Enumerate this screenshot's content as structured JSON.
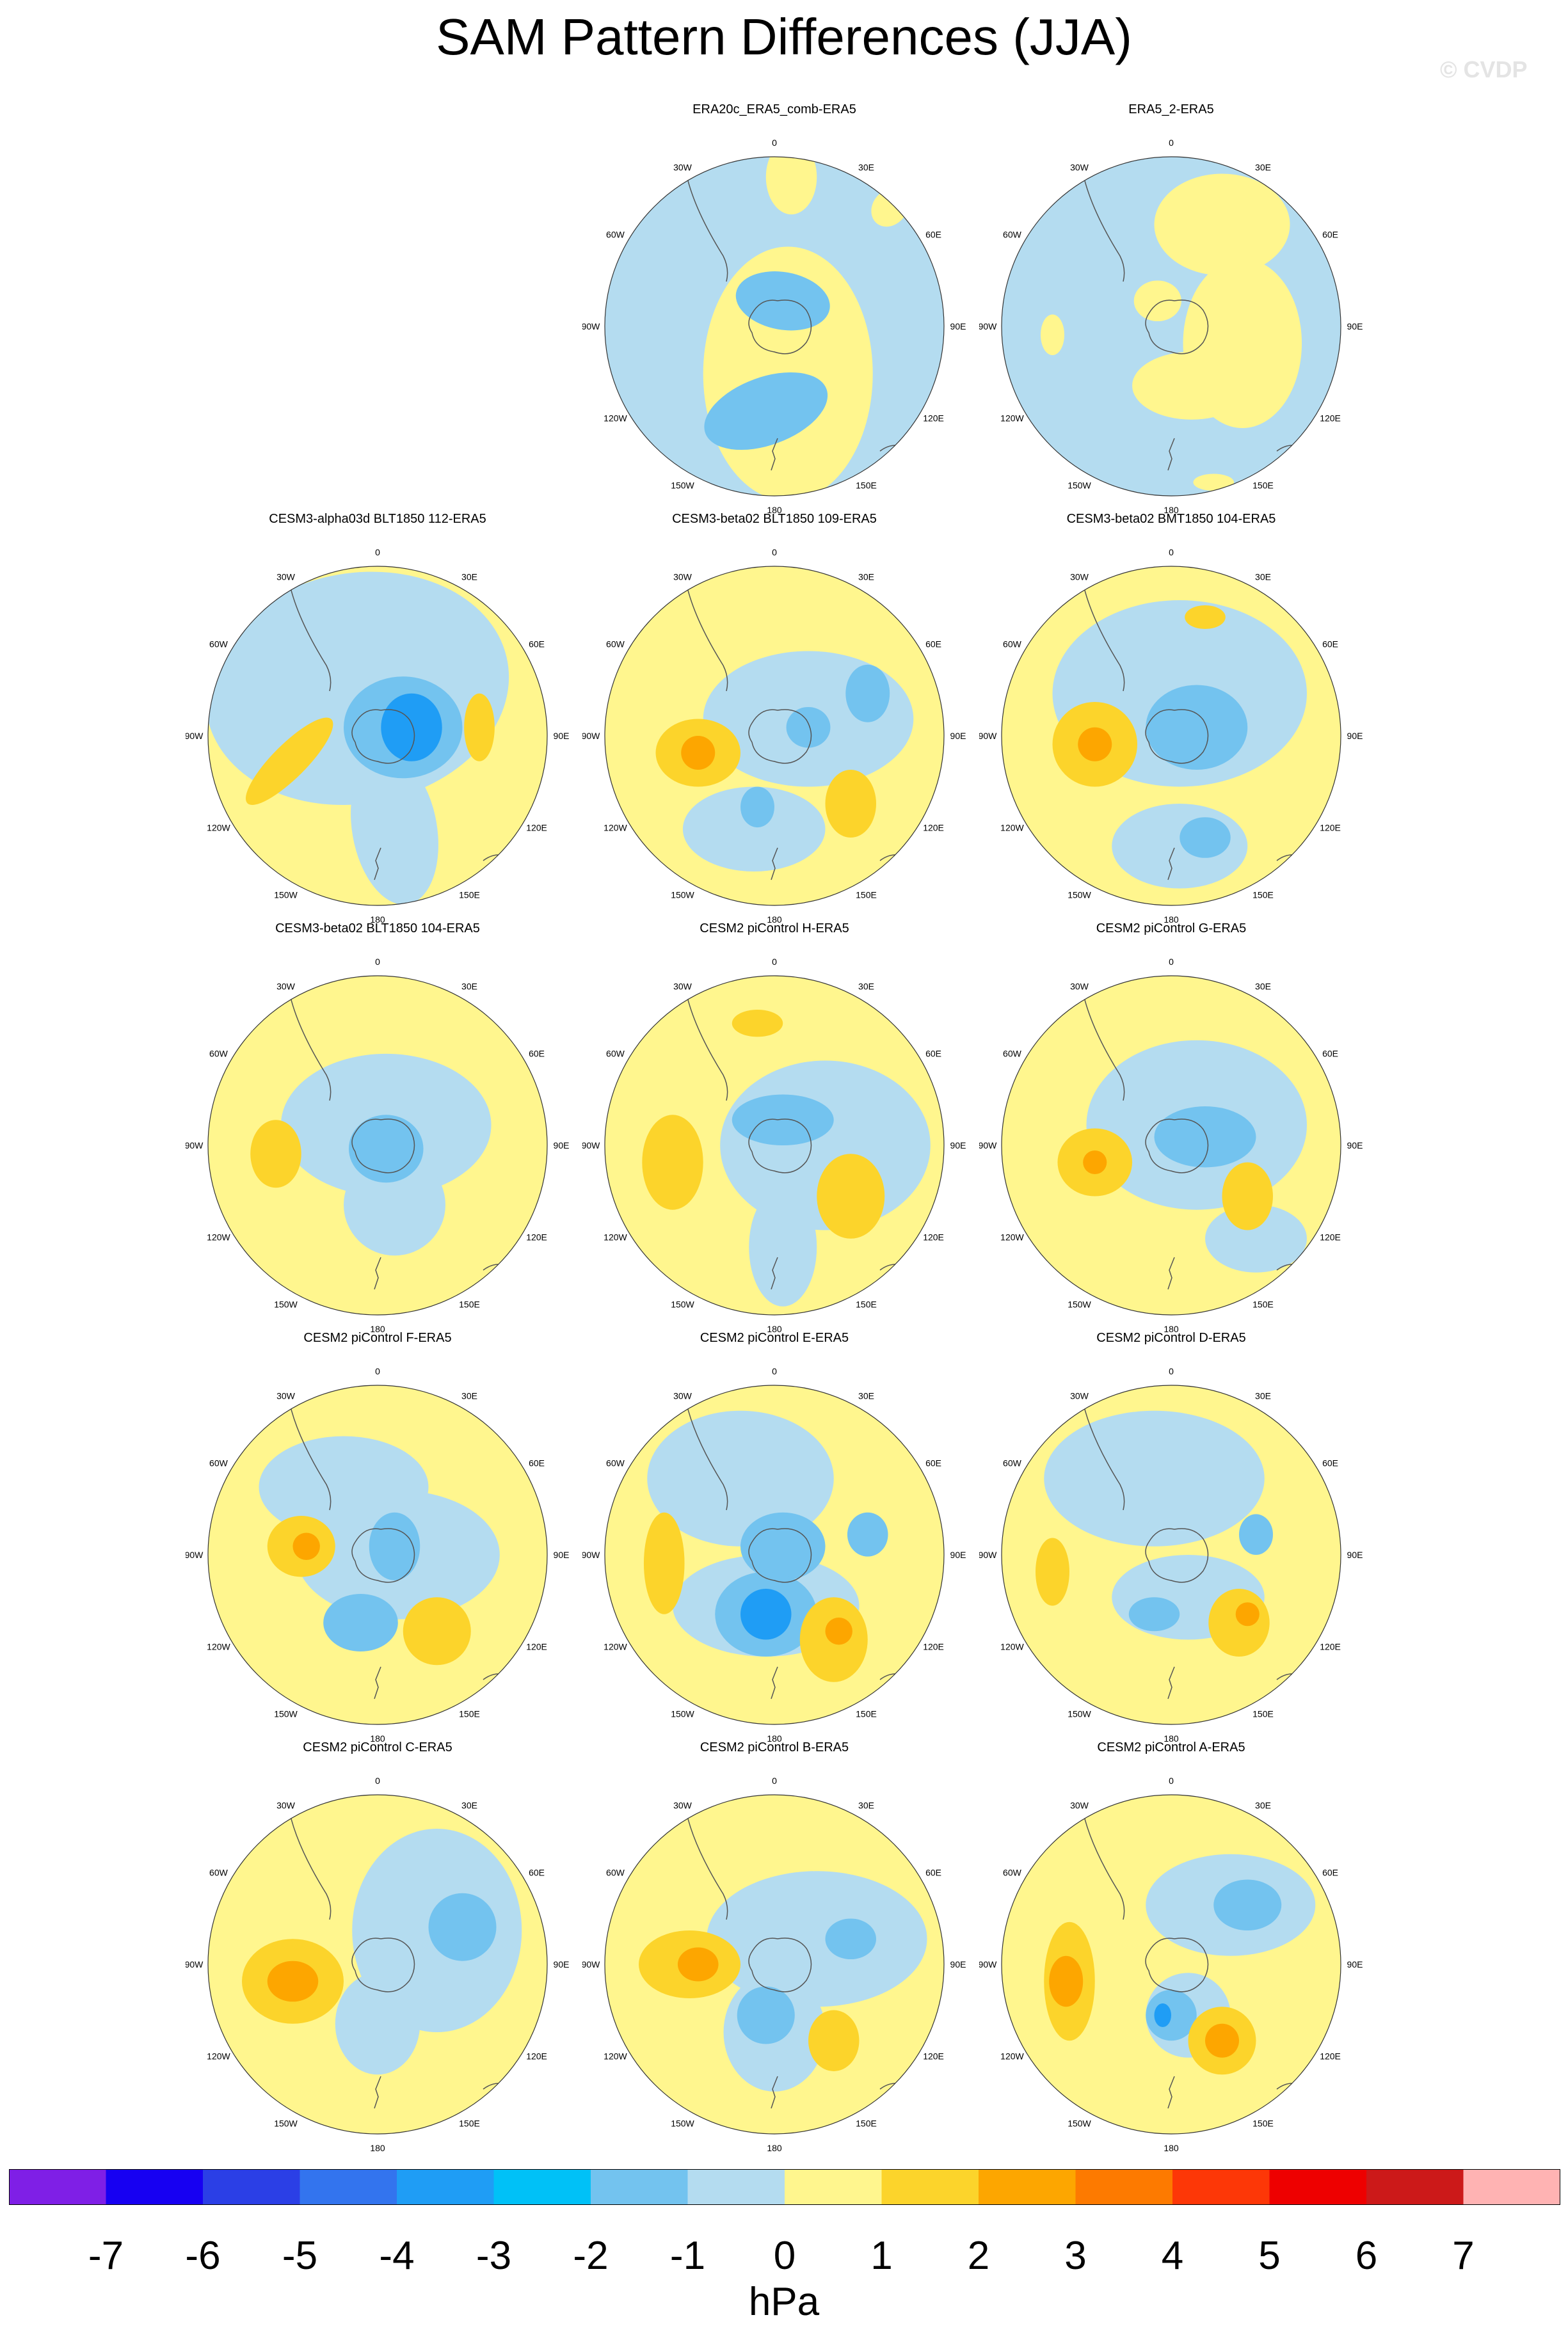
{
  "title": "SAM Pattern Differences (JJA)",
  "watermark": "© CVDP",
  "colors": {
    "neg1": "#b4dcf0",
    "neg2": "#73c3ef",
    "neg3": "#1f9df5",
    "pos1": "#fff68e",
    "pos2": "#fcd42b",
    "pos3": "#fda600",
    "land": "#555555",
    "rim": "#333333"
  },
  "panels": [
    {
      "title": "ERA20c_ERA5_comb-ERA5",
      "bg": "neg1",
      "blobs": [
        [
          "pos1",
          0.08,
          -0.28,
          0.5,
          0.75,
          0
        ],
        [
          "pos1",
          0.1,
          0.88,
          0.15,
          0.22,
          0
        ],
        [
          "pos1",
          0.68,
          0.7,
          0.1,
          0.12,
          40
        ],
        [
          "neg2",
          -0.05,
          -0.5,
          0.38,
          0.2,
          -20
        ],
        [
          "neg2",
          0.05,
          0.15,
          0.28,
          0.17,
          10
        ]
      ]
    },
    {
      "title": "ERA5_2-ERA5",
      "bg": "neg1",
      "blobs": [
        [
          "pos1",
          0.3,
          0.6,
          0.4,
          0.3,
          0
        ],
        [
          "pos1",
          0.42,
          -0.1,
          0.35,
          0.5,
          0
        ],
        [
          "pos1",
          0.12,
          -0.35,
          0.35,
          0.2,
          0
        ],
        [
          "pos1",
          -0.7,
          -0.05,
          0.07,
          0.12,
          0
        ],
        [
          "pos1",
          -0.08,
          0.15,
          0.14,
          0.12,
          0
        ],
        [
          "pos1",
          0.25,
          -0.92,
          0.12,
          0.05,
          0
        ]
      ]
    },
    {
      "title": "CESM3-alpha03d BLT1850 112-ERA5",
      "bg": "pos1",
      "blobs": [
        [
          "neg1",
          -0.12,
          0.28,
          0.9,
          0.68,
          -10
        ],
        [
          "neg1",
          0.1,
          -0.55,
          0.25,
          0.45,
          -10
        ],
        [
          "neg2",
          0.15,
          0.05,
          0.35,
          0.3,
          0
        ],
        [
          "neg3",
          0.2,
          0.05,
          0.18,
          0.2,
          0
        ],
        [
          "pos2",
          -0.52,
          -0.15,
          0.1,
          0.35,
          45
        ],
        [
          "pos2",
          0.6,
          0.05,
          0.09,
          0.2,
          0
        ]
      ]
    },
    {
      "title": "CESM3-beta02 BLT1850 109-ERA5",
      "bg": "pos1",
      "blobs": [
        [
          "neg1",
          0.2,
          0.1,
          0.62,
          0.4,
          0
        ],
        [
          "neg1",
          -0.12,
          -0.55,
          0.42,
          0.25,
          0
        ],
        [
          "neg2",
          0.55,
          0.25,
          0.13,
          0.17,
          0
        ],
        [
          "neg2",
          0.2,
          0.05,
          0.13,
          0.12,
          0
        ],
        [
          "neg2",
          -0.1,
          -0.42,
          0.1,
          0.12,
          0
        ],
        [
          "pos2",
          -0.45,
          -0.1,
          0.25,
          0.2,
          0
        ],
        [
          "pos3",
          -0.45,
          -0.1,
          0.1,
          0.1,
          0
        ],
        [
          "pos2",
          0.45,
          -0.4,
          0.15,
          0.2,
          0
        ]
      ]
    },
    {
      "title": "CESM3-beta02 BMT1850 104-ERA5",
      "bg": "pos1",
      "blobs": [
        [
          "neg1",
          0.05,
          0.25,
          0.75,
          0.55,
          0
        ],
        [
          "neg1",
          0.05,
          -0.65,
          0.4,
          0.25,
          0
        ],
        [
          "neg2",
          0.15,
          0.05,
          0.3,
          0.25,
          0
        ],
        [
          "neg2",
          0.2,
          -0.6,
          0.15,
          0.12,
          0
        ],
        [
          "pos2",
          -0.45,
          -0.05,
          0.25,
          0.25,
          0
        ],
        [
          "pos3",
          -0.45,
          -0.05,
          0.1,
          0.1,
          0
        ],
        [
          "pos2",
          0.2,
          0.7,
          0.12,
          0.07,
          0
        ]
      ]
    },
    {
      "title": "CESM3-beta02 BLT1850 104-ERA5",
      "bg": "pos1",
      "blobs": [
        [
          "neg1",
          0.05,
          0.12,
          0.62,
          0.42,
          0
        ],
        [
          "neg1",
          0.1,
          -0.35,
          0.3,
          0.3,
          0
        ],
        [
          "neg2",
          0.05,
          -0.02,
          0.22,
          0.2,
          0
        ],
        [
          "pos2",
          -0.6,
          -0.05,
          0.15,
          0.2,
          0
        ]
      ]
    },
    {
      "title": "CESM2 piControl H-ERA5",
      "bg": "pos1",
      "blobs": [
        [
          "neg1",
          0.3,
          0.0,
          0.62,
          0.5,
          0
        ],
        [
          "neg1",
          0.05,
          -0.6,
          0.2,
          0.35,
          0
        ],
        [
          "neg2",
          0.05,
          0.15,
          0.3,
          0.15,
          0
        ],
        [
          "pos2",
          -0.6,
          -0.1,
          0.18,
          0.28,
          0
        ],
        [
          "pos2",
          0.45,
          -0.3,
          0.2,
          0.25,
          0
        ],
        [
          "pos2",
          -0.1,
          0.72,
          0.15,
          0.08,
          0
        ]
      ]
    },
    {
      "title": "CESM2 piControl G-ERA5",
      "bg": "pos1",
      "blobs": [
        [
          "neg1",
          0.15,
          0.12,
          0.65,
          0.5,
          0
        ],
        [
          "neg1",
          0.5,
          -0.55,
          0.3,
          0.2,
          0
        ],
        [
          "neg2",
          0.2,
          0.05,
          0.3,
          0.18,
          0
        ],
        [
          "pos2",
          -0.45,
          -0.1,
          0.22,
          0.2,
          0
        ],
        [
          "pos3",
          -0.45,
          -0.1,
          0.07,
          0.07,
          0
        ],
        [
          "pos2",
          0.45,
          -0.3,
          0.15,
          0.2,
          0
        ]
      ]
    },
    {
      "title": "CESM2 piControl F-ERA5",
      "bg": "pos1",
      "blobs": [
        [
          "neg1",
          -0.2,
          0.4,
          0.5,
          0.3,
          0
        ],
        [
          "neg1",
          0.12,
          0.0,
          0.6,
          0.38,
          0
        ],
        [
          "neg2",
          0.1,
          0.05,
          0.15,
          0.2,
          0
        ],
        [
          "neg2",
          -0.1,
          -0.4,
          0.22,
          0.17,
          0
        ],
        [
          "pos2",
          -0.45,
          0.05,
          0.2,
          0.18,
          0
        ],
        [
          "pos3",
          -0.42,
          0.05,
          0.08,
          0.08,
          0
        ],
        [
          "pos2",
          0.35,
          -0.45,
          0.2,
          0.2,
          0
        ]
      ]
    },
    {
      "title": "CESM2 piControl E-ERA5",
      "bg": "pos1",
      "blobs": [
        [
          "neg1",
          -0.2,
          0.45,
          0.55,
          0.4,
          0
        ],
        [
          "neg1",
          -0.05,
          -0.3,
          0.55,
          0.3,
          0
        ],
        [
          "neg2",
          0.05,
          0.05,
          0.25,
          0.2,
          0
        ],
        [
          "neg2",
          -0.05,
          -0.35,
          0.3,
          0.25,
          0
        ],
        [
          "neg3",
          -0.05,
          -0.35,
          0.15,
          0.15,
          0
        ],
        [
          "pos2",
          -0.65,
          -0.05,
          0.12,
          0.3,
          0
        ],
        [
          "pos2",
          0.35,
          -0.5,
          0.2,
          0.25,
          0
        ],
        [
          "pos3",
          0.38,
          -0.45,
          0.08,
          0.08,
          0
        ],
        [
          "neg2",
          0.55,
          0.12,
          0.12,
          0.13,
          0
        ]
      ]
    },
    {
      "title": "CESM2 piControl D-ERA5",
      "bg": "pos1",
      "blobs": [
        [
          "neg1",
          -0.1,
          0.45,
          0.65,
          0.4,
          0
        ],
        [
          "neg1",
          0.1,
          -0.25,
          0.45,
          0.25,
          0
        ],
        [
          "neg2",
          -0.1,
          -0.35,
          0.15,
          0.1,
          0
        ],
        [
          "neg2",
          0.5,
          0.12,
          0.1,
          0.12,
          0
        ],
        [
          "pos2",
          -0.7,
          -0.1,
          0.1,
          0.2,
          0
        ],
        [
          "pos2",
          0.4,
          -0.4,
          0.18,
          0.2,
          0
        ],
        [
          "pos3",
          0.45,
          -0.35,
          0.07,
          0.07,
          0
        ]
      ]
    },
    {
      "title": "CESM2 piControl C-ERA5",
      "bg": "pos1",
      "blobs": [
        [
          "neg1",
          0.35,
          0.2,
          0.5,
          0.6,
          0
        ],
        [
          "neg1",
          0.0,
          -0.35,
          0.25,
          0.3,
          0
        ],
        [
          "neg2",
          0.5,
          0.22,
          0.2,
          0.2,
          0
        ],
        [
          "pos2",
          -0.5,
          -0.1,
          0.3,
          0.25,
          0
        ],
        [
          "pos3",
          -0.5,
          -0.1,
          0.15,
          0.12,
          0
        ]
      ]
    },
    {
      "title": "CESM2 piControl B-ERA5",
      "bg": "pos1",
      "blobs": [
        [
          "neg1",
          0.25,
          0.15,
          0.65,
          0.4,
          0
        ],
        [
          "neg1",
          0.0,
          -0.4,
          0.3,
          0.35,
          0
        ],
        [
          "neg2",
          0.45,
          0.15,
          0.15,
          0.12,
          0
        ],
        [
          "neg2",
          -0.05,
          -0.3,
          0.17,
          0.17,
          0
        ],
        [
          "pos2",
          -0.5,
          0.0,
          0.3,
          0.2,
          0
        ],
        [
          "pos3",
          -0.45,
          0.0,
          0.12,
          0.1,
          0
        ],
        [
          "pos2",
          0.35,
          -0.45,
          0.15,
          0.18,
          0
        ]
      ]
    },
    {
      "title": "CESM2 piControl A-ERA5",
      "bg": "pos1",
      "blobs": [
        [
          "neg1",
          0.35,
          0.35,
          0.5,
          0.3,
          0
        ],
        [
          "neg1",
          0.1,
          -0.3,
          0.25,
          0.25,
          0
        ],
        [
          "neg2",
          0.45,
          0.35,
          0.2,
          0.15,
          0
        ],
        [
          "neg2",
          0.0,
          -0.3,
          0.15,
          0.15,
          0
        ],
        [
          "neg3",
          -0.05,
          -0.3,
          0.05,
          0.07,
          0
        ],
        [
          "pos2",
          -0.6,
          -0.1,
          0.15,
          0.35,
          0
        ],
        [
          "pos3",
          -0.62,
          -0.1,
          0.1,
          0.15,
          0
        ],
        [
          "pos2",
          0.3,
          -0.45,
          0.2,
          0.2,
          0
        ],
        [
          "pos3",
          0.3,
          -0.45,
          0.1,
          0.1,
          0
        ]
      ]
    }
  ],
  "axis_labels": {
    "lon_top": "0",
    "lon_30E": "30E",
    "lon_60E": "60E",
    "lon_90E": "90E",
    "lon_120E": "120E",
    "lon_150E": "150E",
    "lon_180": "180",
    "lon_150W": "150W",
    "lon_120W": "120W",
    "lon_90W": "90W",
    "lon_60W": "60W",
    "lon_30W": "30W"
  },
  "colorbar": {
    "colors": [
      "#7f1fe6",
      "#1700f2",
      "#2b3fe6",
      "#3374ee",
      "#1f9df5",
      "#00c1f7",
      "#73c3ef",
      "#b4dcf0",
      "#fff68e",
      "#fcd42b",
      "#fda600",
      "#fd7a00",
      "#fd3707",
      "#ee0000",
      "#cc1919",
      "#ffb3b3"
    ],
    "ticks": [
      "-7",
      "-6",
      "-5",
      "-4",
      "-3",
      "-2",
      "-1",
      "0",
      "1",
      "2",
      "3",
      "4",
      "5",
      "6",
      "7"
    ],
    "units": "hPa"
  }
}
